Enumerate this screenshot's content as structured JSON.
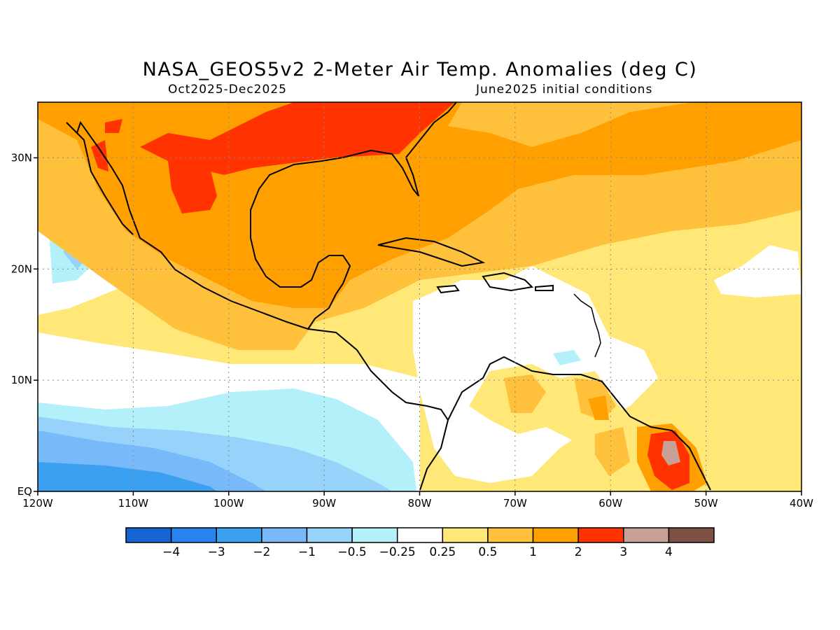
{
  "title": "NASA_GEOS5v2 2-Meter Air Temp. Anomalies (deg C)",
  "period": "Oct2025-Dec2025",
  "initial_conditions": "June2025 initial conditions",
  "map": {
    "lon_range": [
      -120,
      -40
    ],
    "lat_range": [
      0,
      35
    ],
    "lon_ticks": [
      {
        "value": -120,
        "label": "120W"
      },
      {
        "value": -110,
        "label": "110W"
      },
      {
        "value": -100,
        "label": "100W"
      },
      {
        "value": -90,
        "label": "90W"
      },
      {
        "value": -80,
        "label": "80W"
      },
      {
        "value": -70,
        "label": "70W"
      },
      {
        "value": -60,
        "label": "60W"
      },
      {
        "value": -50,
        "label": "50W"
      },
      {
        "value": -40,
        "label": "40W"
      }
    ],
    "lat_ticks": [
      {
        "value": 0,
        "label": "EQ"
      },
      {
        "value": 10,
        "label": "10N"
      },
      {
        "value": 20,
        "label": "20N"
      },
      {
        "value": 30,
        "label": "30N"
      }
    ],
    "grid": true
  },
  "colorbar": {
    "colors": [
      "#1464d2",
      "#2882f0",
      "#3ca0f0",
      "#78b9fa",
      "#96d2fa",
      "#b4f0fa",
      "#ffffff",
      "#ffe878",
      "#ffc03c",
      "#ffa000",
      "#ff3200",
      "#c8a096",
      "#7d5046"
    ],
    "labels": [
      "-4",
      "-3",
      "-2",
      "-1",
      "-0.5",
      "-0.25",
      "0.25",
      "0.5",
      "1",
      "2",
      "3",
      "4"
    ]
  },
  "legend_values": {
    "white": "#ffffff",
    "pale_yellow": "#ffe878",
    "light_orange": "#ffc03c",
    "orange": "#ffa000",
    "red": "#ff3200",
    "pale_blue": "#b4f0fa",
    "light_blue": "#96d2fa",
    "mid_blue": "#78b9fa",
    "blue": "#3ca0f0",
    "land_line": "#000000"
  }
}
